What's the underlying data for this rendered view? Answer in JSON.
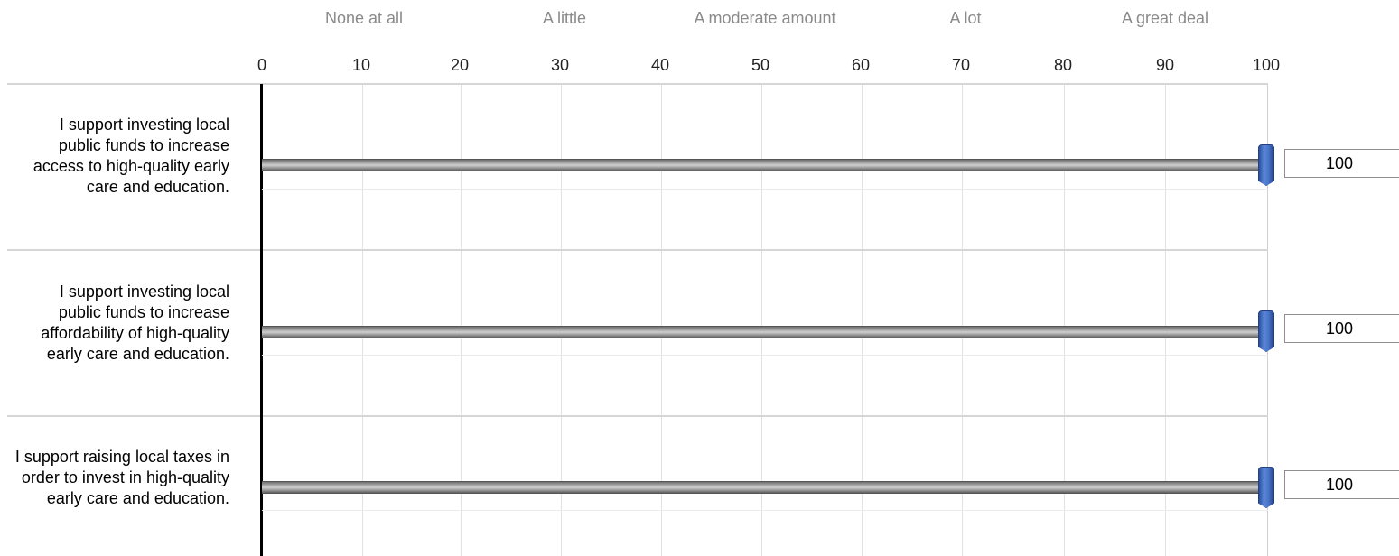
{
  "scale_labels": [
    "None at all",
    "A little",
    "A moderate amount",
    "A lot",
    "A great deal"
  ],
  "ticks": [
    "0",
    "10",
    "20",
    "30",
    "40",
    "50",
    "60",
    "70",
    "80",
    "90",
    "100"
  ],
  "rows": [
    {
      "statement": "I support investing local public funds to increase access to high-quality early care and education.",
      "value": "100"
    },
    {
      "statement": "I support investing local public funds to increase affordability of high-quality early care and education.",
      "value": "100"
    },
    {
      "statement": "I support raising local taxes in order to invest in high-quality early care and education.",
      "value": "100"
    }
  ],
  "colors": {
    "handle": "#4a74c8",
    "track": "#9a9a9a",
    "scale_label": "#8a8a8a"
  }
}
